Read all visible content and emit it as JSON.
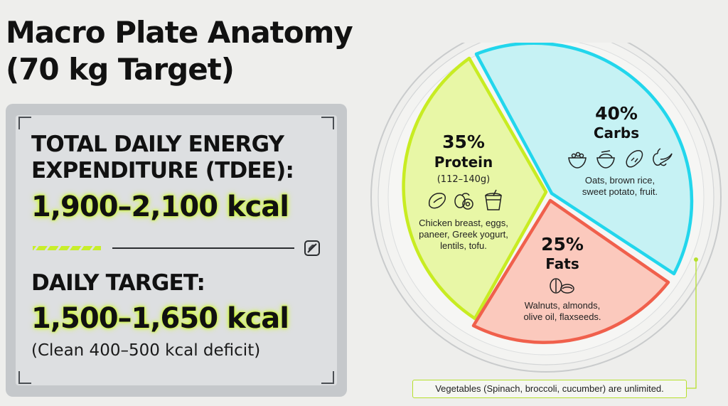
{
  "title": {
    "line1": "Macro Plate Anatomy",
    "line2": "(70 kg Target)"
  },
  "tdee": {
    "label_line1": "TOTAL DAILY ENERGY",
    "label_line2": "EXPENDITURE (TDEE):",
    "value": "1,900–2,100 kcal"
  },
  "daily_target": {
    "label": "DAILY TARGET:",
    "value": "1,500–1,650 kcal",
    "note": "(Clean 400–500 kcal deficit)"
  },
  "plate": {
    "protein": {
      "percent": "35%",
      "name": "Protein",
      "range": "(112–140g)",
      "foods_line1": "Chicken breast, eggs,",
      "foods_line2": "paneer, Greek yogurt,",
      "foods_line3": "lentils, tofu.",
      "color": "#e8f7a6",
      "border": "#c8ec22"
    },
    "carbs": {
      "percent": "40%",
      "name": "Carbs",
      "foods_line1": "Oats, brown rice,",
      "foods_line2": "sweet potato, fruit.",
      "color": "#c6f2f4",
      "border": "#22d6ec"
    },
    "fats": {
      "percent": "25%",
      "name": "Fats",
      "foods_line1": "Walnuts, almonds,",
      "foods_line2": "olive oil, flaxseeds.",
      "color": "#fbc9bd",
      "border": "#f0604c"
    }
  },
  "footnote": "Vegetables (Spinach, broccoli, cucumber) are unlimited."
}
